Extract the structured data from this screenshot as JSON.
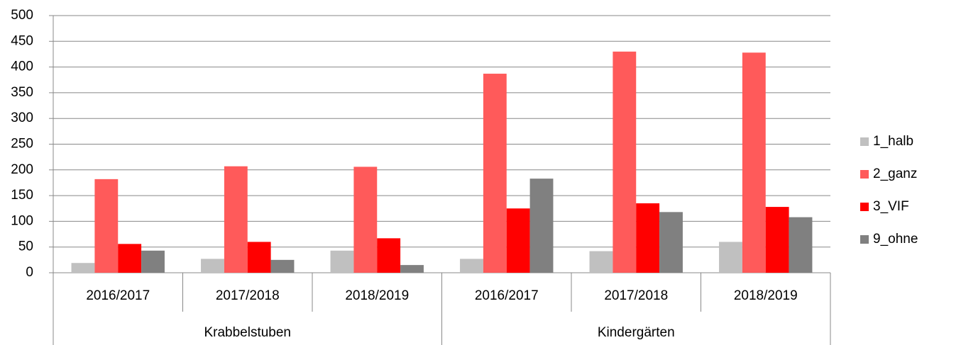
{
  "chart_data": {
    "type": "bar",
    "categories": [
      "2016/2017",
      "2017/2018",
      "2018/2019",
      "2016/2017",
      "2017/2018",
      "2018/2019"
    ],
    "groups": [
      "Krabbelstuben",
      "Kindergärten"
    ],
    "series": [
      {
        "name": "1_halb",
        "color": "#c0c0c0",
        "values": [
          19,
          27,
          43,
          27,
          42,
          60
        ]
      },
      {
        "name": "2_ganz",
        "color": "#ff5a5a",
        "values": [
          182,
          207,
          206,
          387,
          430,
          428
        ]
      },
      {
        "name": "3_VIF",
        "color": "#ff0000",
        "values": [
          56,
          60,
          67,
          125,
          135,
          128
        ]
      },
      {
        "name": "9_ohne",
        "color": "#808080",
        "values": [
          43,
          25,
          15,
          183,
          118,
          108
        ]
      }
    ],
    "ylim": [
      0,
      500
    ],
    "yticks": [
      0,
      50,
      100,
      150,
      200,
      250,
      300,
      350,
      400,
      450,
      500
    ],
    "grid": true,
    "legend": "right"
  }
}
